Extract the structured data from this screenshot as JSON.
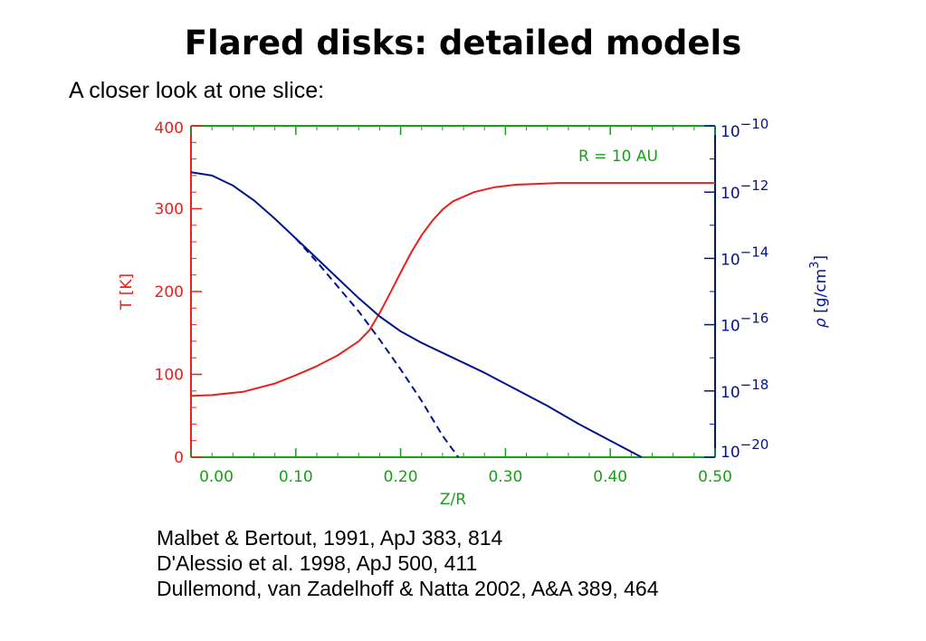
{
  "slide": {
    "title": "Flared disks: detailed models",
    "subtitle": "A closer look at one slice:"
  },
  "references": [
    "Malbet & Bertout, 1991, ApJ 383, 814",
    "D'Alessio et al. 1998, ApJ 500, 411",
    "Dullemond, van Zadelhoff & Natta 2002, A&A 389, 464"
  ],
  "colors": {
    "temperature": "#e8201e",
    "density": "#00148c",
    "axis_x": "#1a9e1a",
    "annotation": "#1a9e1a"
  },
  "chart_data": {
    "type": "line",
    "annotation": "R = 10 AU",
    "xlabel": "Z/R",
    "xlim": [
      0.0,
      0.5
    ],
    "xticks": [
      "0.00",
      "0.10",
      "0.20",
      "0.30",
      "0.40",
      "0.50"
    ],
    "xtick_values": [
      0.0,
      0.1,
      0.2,
      0.3,
      0.4,
      0.5
    ],
    "y_left": {
      "label": "T [K]",
      "lim": [
        0,
        400
      ],
      "ticks": [
        "0",
        "100",
        "200",
        "300",
        "400"
      ],
      "tick_values": [
        0,
        100,
        200,
        300,
        400
      ]
    },
    "y_right": {
      "label_symbol": "ρ",
      "label_unit": "[g/cm",
      "label_exp": "3",
      "label_close": "]",
      "scale": "log",
      "lim_exp": [
        -20,
        -10
      ],
      "tick_base": "10",
      "tick_exponents": [
        "−20",
        "−18",
        "−16",
        "−14",
        "−12",
        "−10"
      ],
      "tick_exp_values": [
        -20,
        -18,
        -16,
        -14,
        -12,
        -10
      ]
    },
    "series": [
      {
        "name": "T",
        "axis": "left",
        "style": "solid",
        "color": "#e8201e",
        "x": [
          0.0,
          0.02,
          0.05,
          0.08,
          0.1,
          0.12,
          0.14,
          0.16,
          0.17,
          0.18,
          0.19,
          0.2,
          0.21,
          0.22,
          0.23,
          0.24,
          0.25,
          0.27,
          0.29,
          0.31,
          0.33,
          0.35,
          0.4,
          0.45,
          0.5
        ],
        "y": [
          74,
          75,
          79,
          89,
          99,
          110,
          123,
          140,
          153,
          174,
          198,
          223,
          247,
          268,
          285,
          299,
          309,
          320,
          326,
          329,
          330,
          331,
          331,
          331,
          331
        ]
      },
      {
        "name": "rho",
        "axis": "right",
        "style": "solid",
        "color": "#00148c",
        "x": [
          0.0,
          0.02,
          0.04,
          0.06,
          0.08,
          0.1,
          0.12,
          0.14,
          0.16,
          0.18,
          0.2,
          0.22,
          0.25,
          0.28,
          0.31,
          0.34,
          0.37,
          0.4,
          0.43
        ],
        "y_exp": [
          -11.4,
          -11.5,
          -11.8,
          -12.25,
          -12.8,
          -13.4,
          -14.0,
          -14.6,
          -15.2,
          -15.75,
          -16.2,
          -16.55,
          -17.0,
          -17.45,
          -17.95,
          -18.45,
          -19.0,
          -19.5,
          -20.0
        ]
      },
      {
        "name": "rho_gaussian",
        "axis": "right",
        "style": "dashed",
        "color": "#00148c",
        "x": [
          0.1,
          0.12,
          0.14,
          0.16,
          0.18,
          0.2,
          0.22,
          0.24,
          0.255
        ],
        "y_exp": [
          -13.4,
          -14.1,
          -14.85,
          -15.6,
          -16.45,
          -17.35,
          -18.3,
          -19.35,
          -20.0
        ]
      }
    ]
  }
}
